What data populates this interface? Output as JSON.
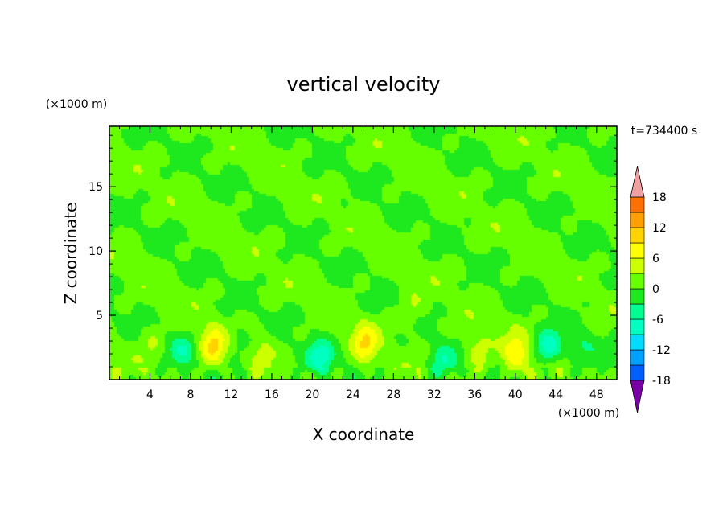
{
  "chart_data": {
    "type": "heatmap",
    "title": "vertical velocity",
    "xlabel": "X coordinate",
    "ylabel": "Z coordinate",
    "x_unit": "(×1000 m)",
    "y_unit": "(×1000 m)",
    "time_label": "t=734400 s",
    "xlim": [
      0,
      50
    ],
    "ylim": [
      0,
      19.7
    ],
    "x_ticks": [
      4,
      8,
      12,
      16,
      20,
      24,
      28,
      32,
      36,
      40,
      44,
      48
    ],
    "y_ticks": [
      5,
      10,
      15
    ],
    "colorbar": {
      "range": [
        -21,
        21
      ],
      "step": 3,
      "tick_labels": [
        "18",
        "12",
        "6",
        "0",
        "-6",
        "-12",
        "-18"
      ],
      "tick_values": [
        18,
        12,
        6,
        0,
        -6,
        -12,
        -18
      ],
      "colors": [
        "#7a00a8",
        "#3a0090",
        "#1500c8",
        "#0020ff",
        "#0060ff",
        "#00a0ff",
        "#00dcff",
        "#00ffc0",
        "#00ff90",
        "#1ee81e",
        "#66ff00",
        "#ccff00",
        "#ffff00",
        "#ffd200",
        "#ffa000",
        "#ff7000",
        "#ff3c00",
        "#ff0000",
        "#e00000",
        "#f0a0a0"
      ]
    },
    "background_value": 0.5,
    "features": [
      {
        "type": "updraft",
        "x": 10.2,
        "z": 2.6,
        "peak": 9
      },
      {
        "type": "updraft",
        "x": 25.2,
        "z": 2.8,
        "peak": 8
      },
      {
        "type": "updraft",
        "x": 40.1,
        "z": 1.9,
        "peak": 8
      },
      {
        "type": "updraft",
        "x": 36.3,
        "z": 2.2,
        "peak": 5
      },
      {
        "type": "updraft",
        "x": 4.2,
        "z": 2.6,
        "peak": 3
      },
      {
        "type": "updraft",
        "x": 15.0,
        "z": 2.4,
        "peak": 3
      },
      {
        "type": "updraft",
        "x": 29.8,
        "z": 5.3,
        "peak": 3
      },
      {
        "type": "downdraft",
        "x": 20.8,
        "z": 1.7,
        "peak": -8
      },
      {
        "type": "downdraft",
        "x": 43.3,
        "z": 2.5,
        "peak": -9
      },
      {
        "type": "downdraft",
        "x": 32.8,
        "z": 1.4,
        "peak": -6
      },
      {
        "type": "downdraft",
        "x": 7.2,
        "z": 2.2,
        "peak": -5
      },
      {
        "type": "downdraft",
        "x": 12.8,
        "z": 3.0,
        "peak": -3
      },
      {
        "type": "downdraft",
        "x": 46.5,
        "z": 2.6,
        "peak": -3
      }
    ]
  }
}
